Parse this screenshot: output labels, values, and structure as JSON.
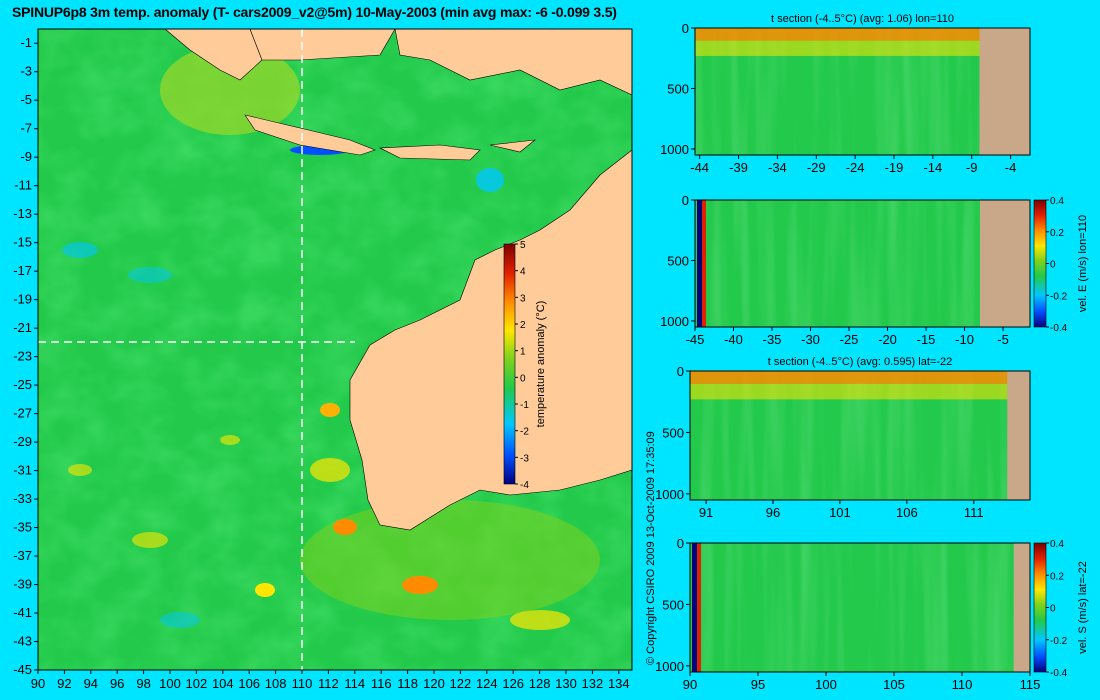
{
  "main_title": "SPINUP6p8 3m temp. anomaly (T- cars2009_v2@5m) 10-May-2003 (min avg max: -6 -0.099 3.5)",
  "copyright": "© Copyright CSIRO 2009   13-Oct-2009 17:35:09",
  "colors": {
    "background": "#00e5ff",
    "land": "#ffcc99",
    "sea_base": "#22c94a",
    "section_land": "#c8a888",
    "colormap": [
      "#00007f",
      "#0050ff",
      "#00c8ff",
      "#22c94a",
      "#7cd21e",
      "#ffe600",
      "#ff8c00",
      "#e02000",
      "#7f0000"
    ]
  },
  "chart_data": [
    {
      "type": "heatmap",
      "name": "map",
      "x_ticks": [
        90,
        92,
        94,
        96,
        98,
        100,
        102,
        104,
        106,
        108,
        110,
        112,
        114,
        116,
        118,
        120,
        122,
        124,
        126,
        128,
        130,
        132,
        134
      ],
      "y_ticks": [
        -1,
        -3,
        -5,
        -7,
        -9,
        -11,
        -13,
        -15,
        -17,
        -19,
        -21,
        -23,
        -25,
        -27,
        -29,
        -31,
        -33,
        -35,
        -37,
        -39,
        -41,
        -43,
        -45
      ],
      "xlim": [
        90,
        135
      ],
      "ylim": [
        -45,
        0
      ],
      "section_lon": 110,
      "section_lat": -22,
      "colorbar": {
        "label": "temperature anomaly (°C)",
        "ticks": [
          5,
          4,
          3,
          2,
          1,
          0,
          -1,
          -2,
          -3,
          -4
        ],
        "range": [
          -4,
          5
        ]
      }
    },
    {
      "type": "heatmap",
      "name": "section_t_lon110",
      "title": "t section (-4..5°C) (avg: 1.06) lon=110",
      "x_ticks": [
        -44,
        -39,
        -34,
        -29,
        -24,
        -19,
        -14,
        -9,
        -4
      ],
      "xlim": [
        -44.6,
        -1.5
      ],
      "y_ticks": [
        0,
        500,
        1000
      ],
      "ylim": [
        1050,
        0
      ],
      "land_from_x": -8
    },
    {
      "type": "heatmap",
      "name": "section_velE_lon110",
      "x_ticks": [
        -45,
        -40,
        -35,
        -30,
        -25,
        -20,
        -15,
        -10,
        -5
      ],
      "xlim": [
        -45,
        -1.5
      ],
      "y_ticks": [
        0,
        500,
        1000
      ],
      "ylim": [
        1050,
        0
      ],
      "land_from_x": -8,
      "colorbar": {
        "label": "vel. E (m/s) lon=110",
        "ticks": [
          "0.4",
          "0.2",
          "0",
          "-0.2",
          "-0.4"
        ],
        "range": [
          -0.4,
          0.4
        ]
      }
    },
    {
      "type": "heatmap",
      "name": "section_t_lat-22",
      "title": "t section (-4..5°C) (avg: 0.595) lat=-22",
      "x_ticks": [
        91,
        96,
        101,
        106,
        111
      ],
      "xlim": [
        89.8,
        115.2
      ],
      "y_ticks": [
        0,
        500,
        1000
      ],
      "ylim": [
        1050,
        0
      ],
      "land_from_x": 113.5
    },
    {
      "type": "heatmap",
      "name": "section_velS_lat-22",
      "x_ticks": [
        90,
        95,
        100,
        105,
        110,
        115
      ],
      "xlim": [
        90,
        115
      ],
      "y_ticks": [
        0,
        500,
        1000
      ],
      "ylim": [
        1050,
        0
      ],
      "land_from_x": 113.8,
      "colorbar": {
        "label": "vel. S (m/s) lat=-22",
        "ticks": [
          "0.4",
          "0.2",
          "0",
          "-0.2",
          "-0.4"
        ],
        "range": [
          -0.4,
          0.4
        ]
      }
    }
  ]
}
